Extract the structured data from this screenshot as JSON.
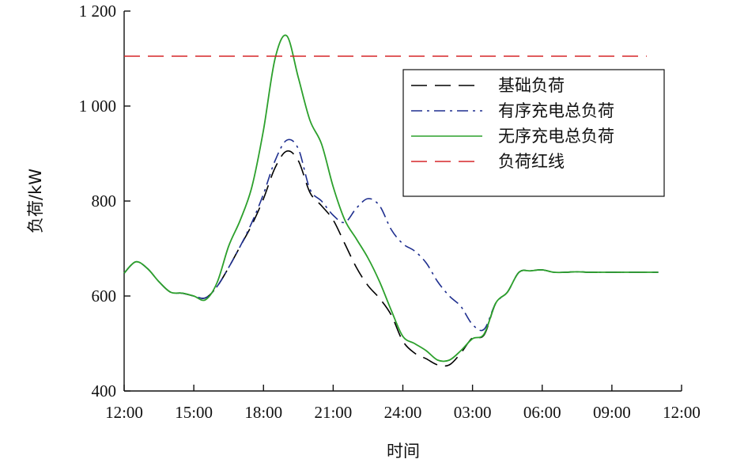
{
  "chart_data": {
    "type": "line",
    "title": "",
    "xlabel": "时间",
    "ylabel": "负荷/kW",
    "x_tick_labels": [
      "12:00",
      "15:00",
      "18:00",
      "21:00",
      "24:00",
      "03:00",
      "06:00",
      "09:00",
      "12:00"
    ],
    "y_tick_labels": [
      "400",
      "600",
      "800",
      "1 000",
      "1 200"
    ],
    "y_ticks": [
      400,
      600,
      800,
      1000,
      1200
    ],
    "ylim": [
      400,
      1200
    ],
    "x_unit": "hours since 12:00",
    "xlim": [
      0,
      24
    ],
    "grid": false,
    "legend_position": "top-right",
    "series": [
      {
        "name": "基础负荷",
        "color": "#000000",
        "style": "dash",
        "x": [
          0,
          0.5,
          1,
          1.5,
          2,
          2.5,
          3,
          3.5,
          4,
          4.5,
          5,
          5.5,
          6,
          6.5,
          7,
          7.5,
          8,
          8.5,
          9,
          9.5,
          10,
          10.5,
          11,
          11.5,
          12,
          12.5,
          13,
          13.5,
          14,
          14.5,
          15,
          15.5,
          16,
          16.5,
          17,
          17.5,
          18,
          18.5,
          19,
          19.5,
          20,
          20.5,
          21,
          21.5,
          22,
          22.5,
          23
        ],
        "y": [
          648,
          672,
          658,
          630,
          608,
          606,
          600,
          596,
          620,
          660,
          705,
          750,
          805,
          870,
          905,
          885,
          818,
          790,
          760,
          710,
          660,
          622,
          595,
          560,
          505,
          480,
          468,
          455,
          455,
          480,
          512,
          518,
          585,
          608,
          650,
          653,
          655,
          650,
          650,
          651,
          650,
          650,
          650,
          650,
          650,
          650,
          650
        ]
      },
      {
        "name": "有序充电总负荷",
        "color": "#1f2f8f",
        "style": "dashdot",
        "x": [
          0,
          0.5,
          1,
          1.5,
          2,
          2.5,
          3,
          3.5,
          4,
          4.5,
          5,
          5.5,
          6,
          6.5,
          7,
          7.5,
          8,
          8.5,
          9,
          9.5,
          10,
          10.5,
          11,
          11.5,
          12,
          12.5,
          13,
          13.5,
          14,
          14.5,
          15,
          15.5,
          16,
          16.5,
          17,
          17.5,
          18,
          18.5,
          19,
          19.5,
          20,
          20.5,
          21,
          21.5,
          22,
          22.5,
          23
        ],
        "y": [
          648,
          672,
          658,
          630,
          608,
          606,
          600,
          596,
          620,
          660,
          705,
          755,
          815,
          885,
          928,
          910,
          825,
          800,
          770,
          755,
          785,
          805,
          790,
          740,
          710,
          695,
          670,
          630,
          600,
          578,
          540,
          530,
          585,
          608,
          650,
          653,
          655,
          650,
          650,
          651,
          650,
          650,
          650,
          650,
          650,
          650,
          650
        ]
      },
      {
        "name": "无序充电总负荷",
        "color": "#2ca02c",
        "style": "solid",
        "x": [
          0,
          0.5,
          1,
          1.5,
          2,
          2.5,
          3,
          3.5,
          4,
          4.5,
          5,
          5.5,
          6,
          6.5,
          7,
          7.5,
          8,
          8.5,
          9,
          9.5,
          10,
          10.5,
          11,
          11.5,
          12,
          12.5,
          13,
          13.5,
          14,
          14.5,
          15,
          15.5,
          16,
          16.5,
          17,
          17.5,
          18,
          18.5,
          19,
          19.5,
          20,
          20.5,
          21,
          21.5,
          22,
          22.5,
          23
        ],
        "y": [
          648,
          672,
          658,
          630,
          608,
          606,
          600,
          592,
          628,
          705,
          760,
          830,
          950,
          1100,
          1148,
          1060,
          970,
          920,
          830,
          760,
          720,
          680,
          630,
          570,
          515,
          500,
          485,
          465,
          465,
          485,
          510,
          520,
          585,
          608,
          650,
          653,
          655,
          650,
          650,
          651,
          650,
          650,
          650,
          650,
          650,
          650,
          650
        ]
      },
      {
        "name": "负荷红线",
        "color": "#d62728",
        "style": "dash",
        "x": [
          0,
          22.5
        ],
        "y": [
          1105,
          1105
        ]
      }
    ]
  }
}
